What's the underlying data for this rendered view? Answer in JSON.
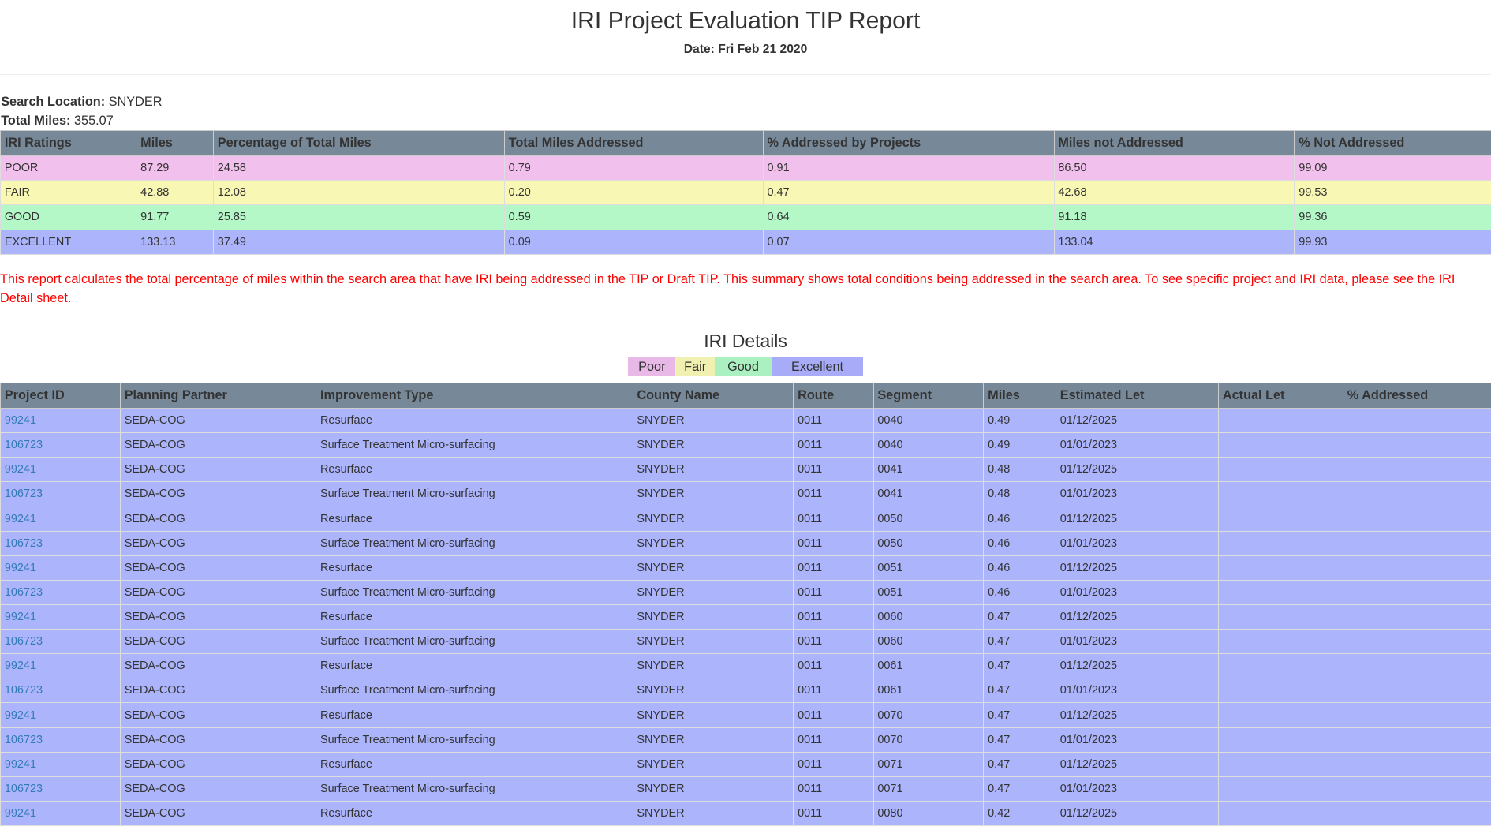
{
  "header": {
    "title": "IRI Project Evaluation TIP Report",
    "date_label": "Date:",
    "date": "Fri Feb 21 2020"
  },
  "meta": {
    "search_label": "Search Location:",
    "search_value": "SNYDER",
    "miles_label": "Total Miles:",
    "miles_value": "355.07"
  },
  "summary": {
    "columns": [
      "IRI Ratings",
      "Miles",
      "Percentage of Total Miles",
      "Total Miles Addressed",
      "% Addressed by Projects",
      "Miles not Addressed",
      "% Not Addressed"
    ],
    "rows": [
      {
        "cls": "poor",
        "cells": [
          "POOR",
          "87.29",
          "24.58",
          "0.79",
          "0.91",
          "86.50",
          "99.09"
        ]
      },
      {
        "cls": "fair",
        "cells": [
          "FAIR",
          "42.88",
          "12.08",
          "0.20",
          "0.47",
          "42.68",
          "99.53"
        ]
      },
      {
        "cls": "good",
        "cells": [
          "GOOD",
          "91.77",
          "25.85",
          "0.59",
          "0.64",
          "91.18",
          "99.36"
        ]
      },
      {
        "cls": "excellent",
        "cells": [
          "EXCELLENT",
          "133.13",
          "37.49",
          "0.09",
          "0.07",
          "133.04",
          "99.93"
        ]
      }
    ]
  },
  "note": "This report calculates the total percentage of miles within the search area that have IRI being addressed in the TIP or Draft TIP. This summary shows total conditions being addressed in the search area. To see specific project and IRI data, please see the IRI Detail sheet.",
  "details": {
    "title": "IRI Details",
    "legend": [
      {
        "label": "Poor",
        "color": "#e8b8e6"
      },
      {
        "label": "Fair",
        "color": "#f0f0b0"
      },
      {
        "label": "Good",
        "color": "#aaf0c0"
      },
      {
        "label": "Excellent",
        "color": "#a8acf8"
      }
    ],
    "columns": [
      "Project ID",
      "Planning Partner",
      "Improvement Type",
      "County Name",
      "Route",
      "Segment",
      "Miles",
      "Estimated Let",
      "Actual Let",
      "% Addressed"
    ],
    "rows": [
      [
        "99241",
        "SEDA-COG",
        "Resurface",
        "SNYDER",
        "0011",
        "0040",
        "0.49",
        "01/12/2025",
        "",
        ""
      ],
      [
        "106723",
        "SEDA-COG",
        "Surface Treatment Micro-surfacing",
        "SNYDER",
        "0011",
        "0040",
        "0.49",
        "01/01/2023",
        "",
        ""
      ],
      [
        "99241",
        "SEDA-COG",
        "Resurface",
        "SNYDER",
        "0011",
        "0041",
        "0.48",
        "01/12/2025",
        "",
        ""
      ],
      [
        "106723",
        "SEDA-COG",
        "Surface Treatment Micro-surfacing",
        "SNYDER",
        "0011",
        "0041",
        "0.48",
        "01/01/2023",
        "",
        ""
      ],
      [
        "99241",
        "SEDA-COG",
        "Resurface",
        "SNYDER",
        "0011",
        "0050",
        "0.46",
        "01/12/2025",
        "",
        ""
      ],
      [
        "106723",
        "SEDA-COG",
        "Surface Treatment Micro-surfacing",
        "SNYDER",
        "0011",
        "0050",
        "0.46",
        "01/01/2023",
        "",
        ""
      ],
      [
        "99241",
        "SEDA-COG",
        "Resurface",
        "SNYDER",
        "0011",
        "0051",
        "0.46",
        "01/12/2025",
        "",
        ""
      ],
      [
        "106723",
        "SEDA-COG",
        "Surface Treatment Micro-surfacing",
        "SNYDER",
        "0011",
        "0051",
        "0.46",
        "01/01/2023",
        "",
        ""
      ],
      [
        "99241",
        "SEDA-COG",
        "Resurface",
        "SNYDER",
        "0011",
        "0060",
        "0.47",
        "01/12/2025",
        "",
        ""
      ],
      [
        "106723",
        "SEDA-COG",
        "Surface Treatment Micro-surfacing",
        "SNYDER",
        "0011",
        "0060",
        "0.47",
        "01/01/2023",
        "",
        ""
      ],
      [
        "99241",
        "SEDA-COG",
        "Resurface",
        "SNYDER",
        "0011",
        "0061",
        "0.47",
        "01/12/2025",
        "",
        ""
      ],
      [
        "106723",
        "SEDA-COG",
        "Surface Treatment Micro-surfacing",
        "SNYDER",
        "0011",
        "0061",
        "0.47",
        "01/01/2023",
        "",
        ""
      ],
      [
        "99241",
        "SEDA-COG",
        "Resurface",
        "SNYDER",
        "0011",
        "0070",
        "0.47",
        "01/12/2025",
        "",
        ""
      ],
      [
        "106723",
        "SEDA-COG",
        "Surface Treatment Micro-surfacing",
        "SNYDER",
        "0011",
        "0070",
        "0.47",
        "01/01/2023",
        "",
        ""
      ],
      [
        "99241",
        "SEDA-COG",
        "Resurface",
        "SNYDER",
        "0011",
        "0071",
        "0.47",
        "01/12/2025",
        "",
        ""
      ],
      [
        "106723",
        "SEDA-COG",
        "Surface Treatment Micro-surfacing",
        "SNYDER",
        "0011",
        "0071",
        "0.47",
        "01/01/2023",
        "",
        ""
      ],
      [
        "99241",
        "SEDA-COG",
        "Resurface",
        "SNYDER",
        "0011",
        "0080",
        "0.42",
        "01/12/2025",
        "",
        ""
      ]
    ]
  }
}
